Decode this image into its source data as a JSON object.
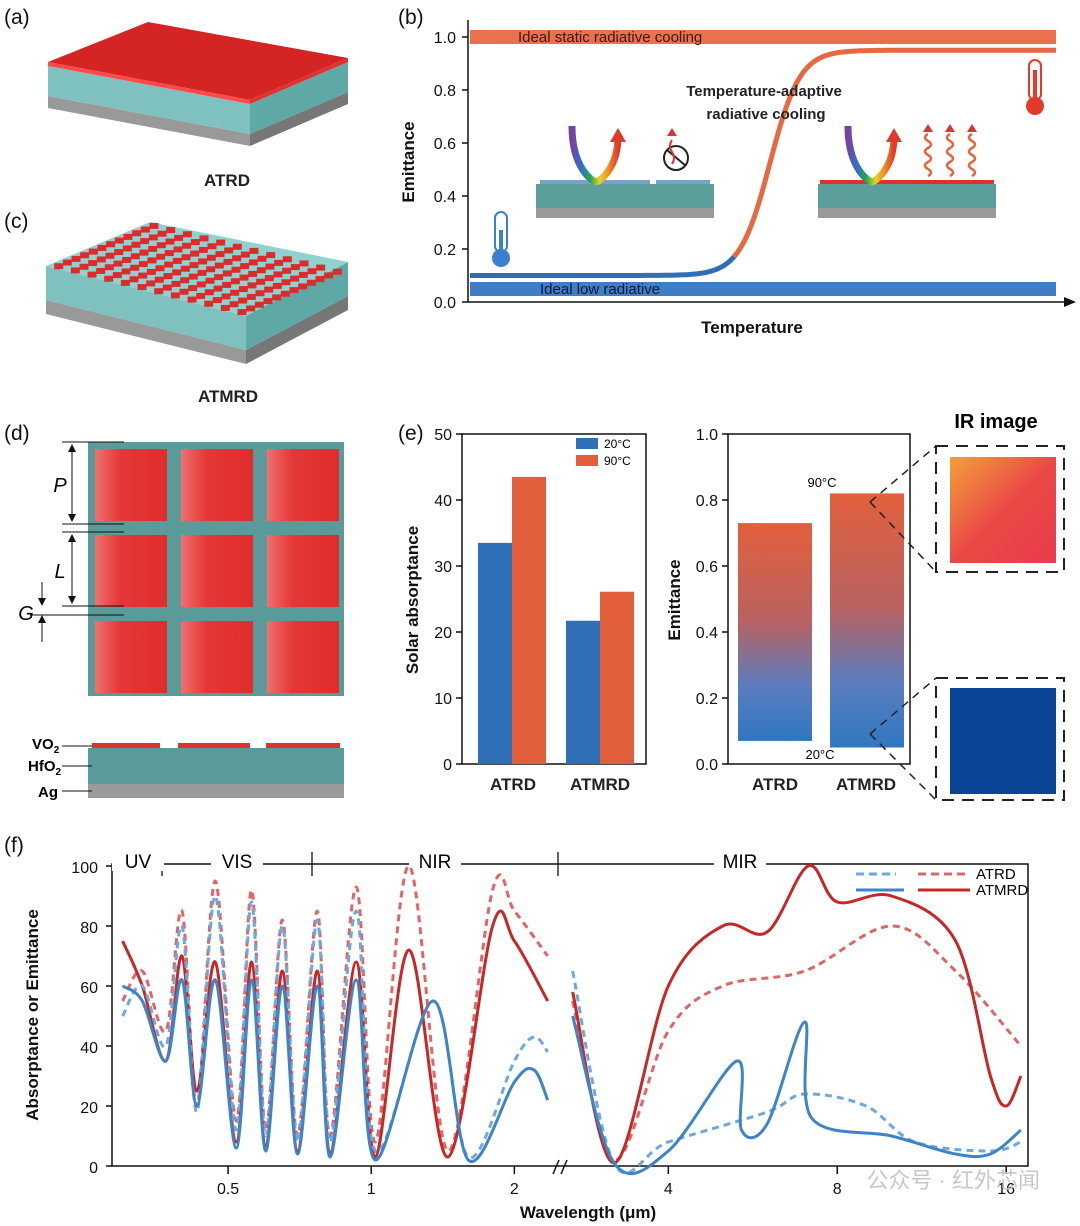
{
  "panels": {
    "a": "(a)",
    "b": "(b)",
    "c": "(c)",
    "d": "(d)",
    "e": "(e)",
    "f": "(f)"
  },
  "device_labels": {
    "atrd": "ATRD",
    "atmrd": "ATMRD"
  },
  "layers": {
    "vo2": "VO",
    "vo2_sub": "2",
    "hfo2": "HfO",
    "hfo2_sub": "2",
    "ag": "Ag"
  },
  "dims": {
    "p": "P",
    "l": "L",
    "g": "G"
  },
  "colors": {
    "hot": "#e35f3b",
    "cold": "#2e6fb5",
    "film_red": "#dd2a2a",
    "substrate": "#5c9e9a",
    "silver": "#9a9a9a",
    "atrd_line": "#e06666",
    "atmrd_line": "#c62828",
    "cold_line": "#3d85c6",
    "ir_cold": "#0a4595"
  },
  "chart_data": [
    {
      "id": "b",
      "type": "line",
      "xlabel": "Temperature",
      "ylabel": "Emittance",
      "ylim": [
        0,
        1.0
      ],
      "yticks": [
        "0.0",
        "0.2",
        "0.4",
        "0.6",
        "0.8",
        "1.0"
      ],
      "annotations": {
        "static": "Ideal static radiative cooling",
        "adaptive_1": "Temperature-adaptive",
        "adaptive_2": "radiative cooling",
        "low": "Ideal low radiative"
      },
      "series": [
        {
          "values_y": [
            1.0,
            1.0
          ]
        },
        {
          "values_y": [
            0.05,
            0.05
          ]
        },
        {
          "low": 0.1,
          "high": 0.95
        }
      ]
    },
    {
      "id": "e-left",
      "type": "bar",
      "ylabel": "Solar absorptance",
      "ylim": [
        0,
        50
      ],
      "yticks": [
        "0",
        "10",
        "20",
        "30",
        "40",
        "50"
      ],
      "categories": [
        "ATRD",
        "ATMRD"
      ],
      "legend": {
        "cold": "20°C",
        "hot": "90°C"
      },
      "series": [
        {
          "name": "20°C",
          "values": [
            33.5,
            21.7
          ]
        },
        {
          "name": "90°C",
          "values": [
            43.5,
            26.1
          ]
        }
      ]
    },
    {
      "id": "e-right",
      "type": "bar",
      "ylabel": "Emittance",
      "ylim": [
        0,
        1.0
      ],
      "yticks": [
        "0.0",
        "0.2",
        "0.4",
        "0.6",
        "0.8",
        "1.0"
      ],
      "categories": [
        "ATRD",
        "ATMRD"
      ],
      "labels": {
        "hot": "90°C",
        "cold": "20°C"
      },
      "bars": [
        {
          "low": 0.07,
          "high": 0.73
        },
        {
          "low": 0.05,
          "high": 0.82
        }
      ],
      "ir_title": "IR image"
    },
    {
      "id": "f",
      "type": "line",
      "xlabel": "Wavelength (μm)",
      "ylabel": "Absorptance or Emittance",
      "ylim": [
        0,
        100
      ],
      "yticks": [
        "0",
        "20",
        "40",
        "60",
        "80",
        "100"
      ],
      "xticks_left": [
        "0.5",
        "1",
        "2"
      ],
      "xticks_right": [
        "4",
        "8",
        "16"
      ],
      "regions": [
        "UV",
        "VIS",
        "NIR",
        "MIR"
      ],
      "legend": [
        "ATRD",
        "ATMRD"
      ],
      "series_note": "dashed = ATRD, solid = ATMRD; red = 90°C, blue = 20°C",
      "series": [
        {
          "name": "ATRD",
          "style": "dashed",
          "color": "red",
          "points_vis": [
            [
              0.3,
              55
            ],
            [
              0.33,
              65
            ],
            [
              0.37,
              45
            ],
            [
              0.4,
              85
            ],
            [
              0.43,
              20
            ],
            [
              0.47,
              95
            ],
            [
              0.52,
              15
            ],
            [
              0.56,
              92
            ],
            [
              0.6,
              12
            ],
            [
              0.65,
              82
            ],
            [
              0.7,
              10
            ],
            [
              0.77,
              85
            ],
            [
              0.82,
              10
            ],
            [
              0.93,
              93
            ],
            [
              1.02,
              8
            ],
            [
              1.2,
              100
            ],
            [
              1.45,
              5
            ],
            [
              1.8,
              92
            ],
            [
              2.0,
              85
            ],
            [
              2.35,
              70
            ]
          ],
          "points_mir": [
            [
              2.7,
              55
            ],
            [
              3.2,
              2
            ],
            [
              4,
              45
            ],
            [
              5,
              60
            ],
            [
              7,
              65
            ],
            [
              10,
              80
            ],
            [
              13,
              65
            ],
            [
              17,
              40
            ]
          ]
        },
        {
          "name": "ATMRD",
          "style": "solid",
          "color": "red",
          "points_vis": [
            [
              0.3,
              75
            ],
            [
              0.33,
              60
            ],
            [
              0.37,
              35
            ],
            [
              0.4,
              70
            ],
            [
              0.43,
              25
            ],
            [
              0.47,
              68
            ],
            [
              0.52,
              8
            ],
            [
              0.56,
              68
            ],
            [
              0.6,
              6
            ],
            [
              0.65,
              65
            ],
            [
              0.7,
              5
            ],
            [
              0.77,
              65
            ],
            [
              0.82,
              4
            ],
            [
              0.93,
              68
            ],
            [
              1.02,
              3
            ],
            [
              1.2,
              72
            ],
            [
              1.45,
              3
            ],
            [
              1.8,
              80
            ],
            [
              2.0,
              75
            ],
            [
              2.35,
              55
            ]
          ],
          "points_mir": [
            [
              2.7,
              58
            ],
            [
              3.2,
              1
            ],
            [
              4,
              60
            ],
            [
              5,
              80
            ],
            [
              6,
              78
            ],
            [
              7.1,
              100
            ],
            [
              8,
              88
            ],
            [
              10,
              90
            ],
            [
              13,
              75
            ],
            [
              15,
              30
            ],
            [
              16,
              20
            ],
            [
              17,
              30
            ]
          ]
        },
        {
          "name": "ATRD",
          "style": "dashed",
          "color": "blue",
          "points_vis": [
            [
              0.3,
              50
            ],
            [
              0.33,
              60
            ],
            [
              0.37,
              40
            ],
            [
              0.4,
              80
            ],
            [
              0.43,
              18
            ],
            [
              0.47,
              90
            ],
            [
              0.52,
              12
            ],
            [
              0.56,
              88
            ],
            [
              0.6,
              10
            ],
            [
              0.65,
              80
            ],
            [
              0.7,
              8
            ],
            [
              0.77,
              82
            ],
            [
              0.82,
              8
            ],
            [
              0.93,
              85
            ],
            [
              1.02,
              5
            ],
            [
              1.35,
              55
            ],
            [
              1.6,
              3
            ],
            [
              2.0,
              35
            ],
            [
              2.2,
              43
            ],
            [
              2.35,
              38
            ]
          ],
          "points_mir": [
            [
              2.7,
              65
            ],
            [
              3.2,
              1
            ],
            [
              4,
              8
            ],
            [
              6,
              18
            ],
            [
              7,
              24
            ],
            [
              9,
              20
            ],
            [
              11,
              8
            ],
            [
              15,
              5
            ],
            [
              17,
              8
            ]
          ]
        },
        {
          "name": "ATMRD",
          "style": "solid",
          "color": "blue",
          "points_vis": [
            [
              0.3,
              60
            ],
            [
              0.33,
              55
            ],
            [
              0.37,
              35
            ],
            [
              0.4,
              62
            ],
            [
              0.43,
              20
            ],
            [
              0.47,
              62
            ],
            [
              0.52,
              6
            ],
            [
              0.56,
              62
            ],
            [
              0.6,
              5
            ],
            [
              0.65,
              60
            ],
            [
              0.7,
              4
            ],
            [
              0.77,
              60
            ],
            [
              0.82,
              3
            ],
            [
              0.93,
              62
            ],
            [
              1.02,
              2
            ],
            [
              1.35,
              55
            ],
            [
              1.6,
              2
            ],
            [
              2.0,
              28
            ],
            [
              2.2,
              32
            ],
            [
              2.35,
              22
            ]
          ],
          "points_mir": [
            [
              2.7,
              50
            ],
            [
              3.2,
              1
            ],
            [
              4,
              5
            ],
            [
              5.3,
              35
            ],
            [
              5.4,
              12
            ],
            [
              6,
              14
            ],
            [
              7,
              48
            ],
            [
              7.2,
              16
            ],
            [
              10,
              10
            ],
            [
              13,
              4
            ],
            [
              15,
              4
            ],
            [
              17,
              12
            ]
          ]
        }
      ]
    }
  ],
  "watermark": "公众号 · 红外芯闻"
}
